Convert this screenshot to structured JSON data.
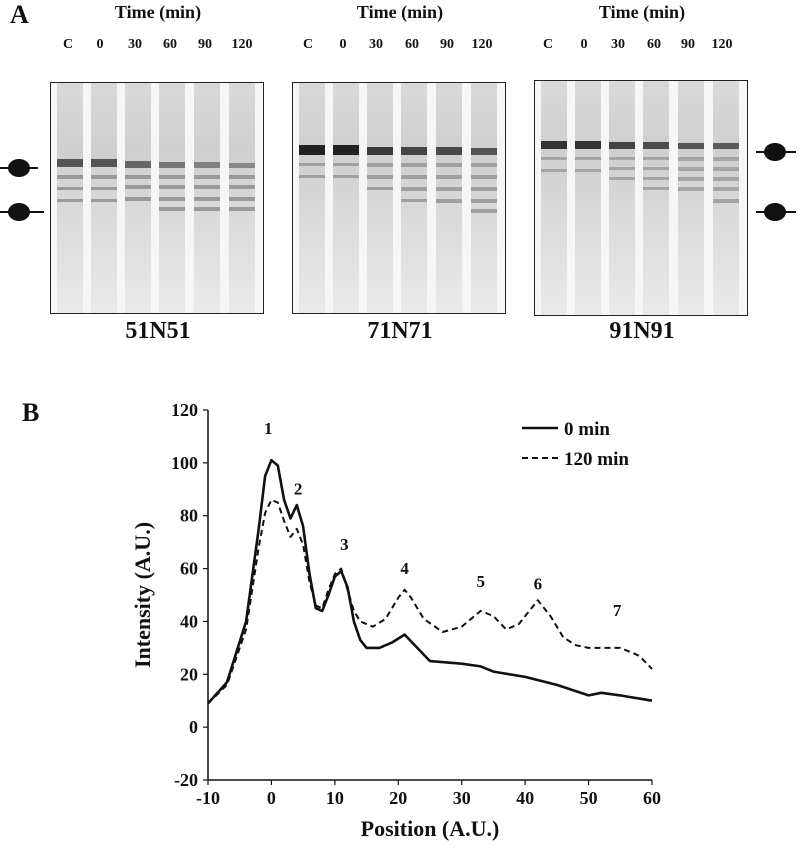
{
  "panel_a": {
    "letter": "A",
    "gels": [
      {
        "name": "51N51",
        "time_label": "Time (min)",
        "lanes": [
          "C",
          "0",
          "30",
          "60",
          "90",
          "120"
        ]
      },
      {
        "name": "71N71",
        "time_label": "Time (min)",
        "lanes": [
          "C",
          "0",
          "30",
          "60",
          "90",
          "120"
        ]
      },
      {
        "name": "91N91",
        "time_label": "Time (min)",
        "lanes": [
          "C",
          "0",
          "30",
          "60",
          "90",
          "120"
        ]
      }
    ]
  },
  "panel_b": {
    "letter": "B"
  },
  "chart_data": {
    "type": "line",
    "xlabel": "Position (A.U.)",
    "ylabel": "Intensity (A.U.)",
    "xlim": [
      -10,
      60
    ],
    "ylim": [
      -20,
      120
    ],
    "xticks": [
      "-10",
      "0",
      "10",
      "20",
      "30",
      "40",
      "50",
      "60"
    ],
    "yticks": [
      "-20",
      "0",
      "20",
      "40",
      "60",
      "80",
      "100",
      "120"
    ],
    "legend_position": "top-right",
    "series": [
      {
        "name": "0 min",
        "style": "solid",
        "x": [
          -10,
          -7,
          -4,
          -2,
          -1,
          0,
          1,
          2,
          3,
          4,
          5,
          6,
          7,
          8,
          9,
          10,
          11,
          12,
          13,
          14,
          15,
          17,
          19,
          21,
          23,
          25,
          30,
          33,
          35,
          40,
          45,
          50,
          52,
          55,
          60
        ],
        "y": [
          9,
          17,
          40,
          75,
          95,
          101,
          99,
          86,
          79,
          84,
          76,
          58,
          45,
          44,
          50,
          57,
          59,
          53,
          40,
          33,
          30,
          30,
          32,
          35,
          30,
          25,
          24,
          23,
          21,
          19,
          16,
          12,
          13,
          12,
          10
        ]
      },
      {
        "name": "120 min",
        "style": "dashed",
        "x": [
          -10,
          -7,
          -4,
          -2,
          -1,
          0,
          1,
          2,
          3,
          4,
          5,
          6,
          7,
          8,
          9,
          10,
          11,
          12,
          13,
          14,
          16,
          18,
          20,
          21,
          22,
          24,
          27,
          30,
          33,
          35,
          37,
          39,
          41,
          42,
          44,
          46,
          48,
          50,
          52,
          55,
          58,
          60
        ],
        "y": [
          9,
          16,
          37,
          68,
          81,
          86,
          85,
          78,
          72,
          75,
          69,
          55,
          46,
          45,
          52,
          58,
          60,
          52,
          44,
          40,
          38,
          41,
          49,
          52,
          49,
          41,
          36,
          38,
          44,
          42,
          37,
          39,
          45,
          48,
          42,
          34,
          31,
          30,
          30,
          30,
          27,
          22
        ]
      }
    ],
    "annotations": [
      {
        "text": "1",
        "x": -0.5,
        "y": 111
      },
      {
        "text": "2",
        "x": 4.2,
        "y": 88
      },
      {
        "text": "3",
        "x": 11.5,
        "y": 67
      },
      {
        "text": "4",
        "x": 21,
        "y": 58
      },
      {
        "text": "5",
        "x": 33,
        "y": 53
      },
      {
        "text": "6",
        "x": 42,
        "y": 52
      },
      {
        "text": "7",
        "x": 54.5,
        "y": 42
      }
    ]
  }
}
